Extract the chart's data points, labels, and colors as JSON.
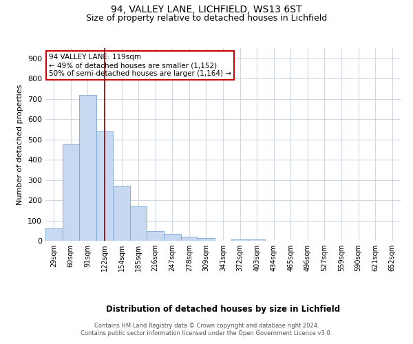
{
  "title1": "94, VALLEY LANE, LICHFIELD, WS13 6ST",
  "title2": "Size of property relative to detached houses in Lichfield",
  "xlabel": "Distribution of detached houses by size in Lichfield",
  "ylabel": "Number of detached properties",
  "categories": [
    "29sqm",
    "60sqm",
    "91sqm",
    "122sqm",
    "154sqm",
    "185sqm",
    "216sqm",
    "247sqm",
    "278sqm",
    "309sqm",
    "341sqm",
    "372sqm",
    "403sqm",
    "434sqm",
    "465sqm",
    "496sqm",
    "527sqm",
    "559sqm",
    "590sqm",
    "621sqm",
    "652sqm"
  ],
  "values": [
    60,
    480,
    720,
    540,
    270,
    170,
    48,
    35,
    20,
    15,
    0,
    8,
    8,
    0,
    0,
    0,
    0,
    0,
    0,
    0,
    0
  ],
  "bar_color": "#c6d9f1",
  "bar_edge_color": "#7ba7d0",
  "vline_x_index": 3,
  "vline_color": "#8b0000",
  "annotation_lines": [
    "94 VALLEY LANE: 119sqm",
    "← 49% of detached houses are smaller (1,152)",
    "50% of semi-detached houses are larger (1,164) →"
  ],
  "annotation_box_color": "#ffffff",
  "annotation_box_edge_color": "#cc0000",
  "footer1": "Contains HM Land Registry data © Crown copyright and database right 2024.",
  "footer2": "Contains public sector information licensed under the Open Government Licence v3.0.",
  "ylim": [
    0,
    950
  ],
  "yticks": [
    0,
    100,
    200,
    300,
    400,
    500,
    600,
    700,
    800,
    900
  ],
  "background_color": "#ffffff",
  "grid_color": "#d0d8e8"
}
